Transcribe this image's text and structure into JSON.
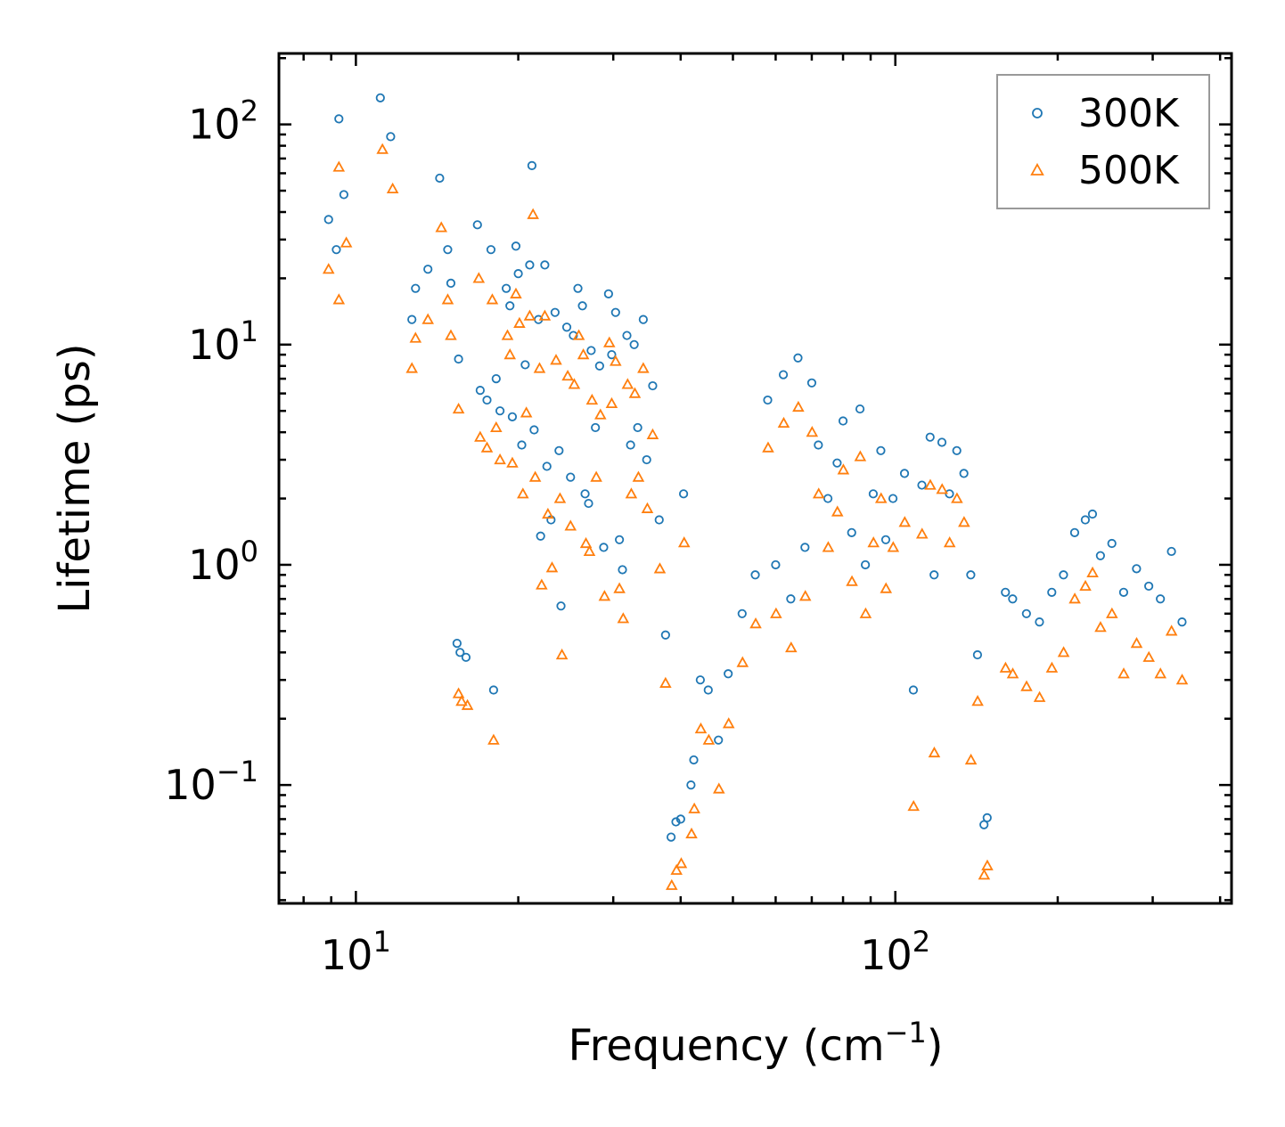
{
  "chart_data": {
    "type": "scatter",
    "title": "",
    "xlabel_main": "Frequency (cm",
    "xlabel_sup": "−1",
    "xlabel_end": ")",
    "ylabel": "Lifetime (ps)",
    "xscale": "log",
    "yscale": "log",
    "xlim": [
      7.2,
      420
    ],
    "ylim": [
      0.029,
      210
    ],
    "x_ticks": [
      {
        "value": 10,
        "base": "10",
        "exp": "1"
      },
      {
        "value": 100,
        "base": "10",
        "exp": "2"
      }
    ],
    "y_ticks": [
      {
        "value": 0.1,
        "base": "10",
        "exp": "−1"
      },
      {
        "value": 1,
        "base": "10",
        "exp": "0"
      },
      {
        "value": 10,
        "base": "10",
        "exp": "1"
      },
      {
        "value": 100,
        "base": "10",
        "exp": "2"
      }
    ],
    "legend_position": "top-right",
    "series": [
      {
        "name": "300K",
        "marker": "circle",
        "color": "#1f77b4",
        "points": [
          [
            8.9,
            37
          ],
          [
            9.2,
            27
          ],
          [
            9.3,
            106
          ],
          [
            9.5,
            48
          ],
          [
            11.1,
            132
          ],
          [
            11.6,
            88
          ],
          [
            12.7,
            13
          ],
          [
            12.9,
            18
          ],
          [
            13.6,
            22
          ],
          [
            14.3,
            57
          ],
          [
            14.8,
            27
          ],
          [
            15.0,
            19
          ],
          [
            15.5,
            8.6
          ],
          [
            15.4,
            0.44
          ],
          [
            15.6,
            0.4
          ],
          [
            16.0,
            0.38
          ],
          [
            16.8,
            35
          ],
          [
            17.0,
            6.2
          ],
          [
            17.5,
            5.6
          ],
          [
            17.8,
            27
          ],
          [
            18.2,
            7.0
          ],
          [
            18.0,
            0.27
          ],
          [
            18.5,
            5.0
          ],
          [
            19.0,
            18
          ],
          [
            19.3,
            15
          ],
          [
            19.5,
            4.7
          ],
          [
            19.8,
            28
          ],
          [
            20.0,
            21
          ],
          [
            20.3,
            3.5
          ],
          [
            20.6,
            8.1
          ],
          [
            21.0,
            23
          ],
          [
            21.2,
            65
          ],
          [
            21.4,
            4.1
          ],
          [
            21.8,
            13
          ],
          [
            22.0,
            1.35
          ],
          [
            22.4,
            23
          ],
          [
            22.6,
            2.8
          ],
          [
            23.0,
            1.6
          ],
          [
            23.4,
            14
          ],
          [
            23.8,
            3.3
          ],
          [
            24.0,
            0.65
          ],
          [
            24.6,
            12
          ],
          [
            25.0,
            2.5
          ],
          [
            25.3,
            11
          ],
          [
            25.8,
            18
          ],
          [
            26.3,
            15
          ],
          [
            26.6,
            2.1
          ],
          [
            27.0,
            1.9
          ],
          [
            27.3,
            9.4
          ],
          [
            27.8,
            4.2
          ],
          [
            28.3,
            8.0
          ],
          [
            28.8,
            1.2
          ],
          [
            29.4,
            17
          ],
          [
            29.8,
            9.0
          ],
          [
            30.3,
            14
          ],
          [
            30.8,
            1.3
          ],
          [
            31.2,
            0.95
          ],
          [
            31.8,
            11
          ],
          [
            32.3,
            3.5
          ],
          [
            32.8,
            10
          ],
          [
            33.3,
            4.2
          ],
          [
            34.1,
            13
          ],
          [
            34.6,
            3.0
          ],
          [
            35.5,
            6.5
          ],
          [
            36.5,
            1.6
          ],
          [
            37.5,
            0.48
          ],
          [
            38.4,
            0.058
          ],
          [
            39.2,
            0.068
          ],
          [
            40.0,
            0.07
          ],
          [
            40.5,
            2.1
          ],
          [
            41.8,
            0.1
          ],
          [
            42.3,
            0.13
          ],
          [
            43.5,
            0.3
          ],
          [
            45.0,
            0.27
          ],
          [
            47.0,
            0.16
          ],
          [
            49.0,
            0.32
          ],
          [
            52.0,
            0.6
          ],
          [
            55.0,
            0.9
          ],
          [
            58.0,
            5.6
          ],
          [
            60.0,
            1.0
          ],
          [
            62.0,
            7.3
          ],
          [
            64.0,
            0.7
          ],
          [
            66.0,
            8.7
          ],
          [
            68.0,
            1.2
          ],
          [
            70.0,
            6.7
          ],
          [
            72.0,
            3.5
          ],
          [
            75.0,
            2.0
          ],
          [
            78.0,
            2.9
          ],
          [
            80.0,
            4.5
          ],
          [
            83.0,
            1.4
          ],
          [
            86.0,
            5.1
          ],
          [
            88.0,
            1.0
          ],
          [
            91.0,
            2.1
          ],
          [
            94.0,
            3.3
          ],
          [
            96.0,
            1.3
          ],
          [
            99.0,
            2.0
          ],
          [
            104.0,
            2.6
          ],
          [
            108.0,
            0.27
          ],
          [
            112.0,
            2.3
          ],
          [
            116.0,
            3.8
          ],
          [
            118.0,
            0.9
          ],
          [
            122.0,
            3.6
          ],
          [
            126.0,
            2.1
          ],
          [
            130.0,
            3.3
          ],
          [
            134.0,
            2.6
          ],
          [
            138.0,
            0.9
          ],
          [
            142.0,
            0.39
          ],
          [
            146.0,
            0.066
          ],
          [
            148.0,
            0.071
          ],
          [
            160.0,
            0.75
          ],
          [
            165.0,
            0.7
          ],
          [
            175.0,
            0.6
          ],
          [
            185.0,
            0.55
          ],
          [
            195.0,
            0.75
          ],
          [
            205.0,
            0.9
          ],
          [
            215.0,
            1.4
          ],
          [
            225.0,
            1.6
          ],
          [
            232.0,
            1.7
          ],
          [
            240.0,
            1.1
          ],
          [
            252.0,
            1.25
          ],
          [
            265.0,
            0.75
          ],
          [
            280.0,
            0.96
          ],
          [
            295.0,
            0.8
          ],
          [
            310.0,
            0.7
          ],
          [
            325.0,
            1.15
          ],
          [
            340.0,
            0.55
          ]
        ]
      },
      {
        "name": "500K",
        "marker": "triangle",
        "color": "#ff7f0e",
        "points": [
          [
            8.9,
            22
          ],
          [
            9.3,
            16
          ],
          [
            9.3,
            64
          ],
          [
            9.6,
            29
          ],
          [
            11.2,
            77
          ],
          [
            11.7,
            51
          ],
          [
            12.7,
            7.8
          ],
          [
            12.9,
            10.7
          ],
          [
            13.6,
            13
          ],
          [
            14.4,
            34
          ],
          [
            14.8,
            16
          ],
          [
            15.0,
            11
          ],
          [
            15.5,
            5.1
          ],
          [
            15.5,
            0.26
          ],
          [
            15.7,
            0.24
          ],
          [
            16.1,
            0.23
          ],
          [
            16.9,
            20
          ],
          [
            17.0,
            3.8
          ],
          [
            17.5,
            3.4
          ],
          [
            17.9,
            16
          ],
          [
            18.2,
            4.2
          ],
          [
            18.0,
            0.16
          ],
          [
            18.5,
            3.0
          ],
          [
            19.1,
            11
          ],
          [
            19.3,
            9.0
          ],
          [
            19.5,
            2.9
          ],
          [
            19.8,
            17
          ],
          [
            20.1,
            12.5
          ],
          [
            20.4,
            2.1
          ],
          [
            20.7,
            4.9
          ],
          [
            21.0,
            13.5
          ],
          [
            21.3,
            39
          ],
          [
            21.5,
            2.5
          ],
          [
            21.9,
            7.8
          ],
          [
            22.1,
            0.81
          ],
          [
            22.4,
            13.5
          ],
          [
            22.7,
            1.7
          ],
          [
            23.1,
            0.97
          ],
          [
            23.5,
            8.5
          ],
          [
            23.9,
            2.0
          ],
          [
            24.1,
            0.39
          ],
          [
            24.7,
            7.2
          ],
          [
            25.0,
            1.5
          ],
          [
            25.4,
            6.6
          ],
          [
            25.9,
            11
          ],
          [
            26.4,
            9.0
          ],
          [
            26.7,
            1.25
          ],
          [
            27.1,
            1.15
          ],
          [
            27.4,
            5.6
          ],
          [
            27.9,
            2.5
          ],
          [
            28.4,
            4.8
          ],
          [
            28.9,
            0.72
          ],
          [
            29.5,
            10.2
          ],
          [
            29.8,
            5.4
          ],
          [
            30.3,
            8.4
          ],
          [
            30.8,
            0.78
          ],
          [
            31.3,
            0.57
          ],
          [
            31.9,
            6.6
          ],
          [
            32.4,
            2.1
          ],
          [
            32.9,
            6.0
          ],
          [
            33.4,
            2.5
          ],
          [
            34.1,
            7.8
          ],
          [
            34.7,
            1.8
          ],
          [
            35.5,
            3.9
          ],
          [
            36.6,
            0.96
          ],
          [
            37.5,
            0.29
          ],
          [
            38.5,
            0.035
          ],
          [
            39.3,
            0.041
          ],
          [
            40.1,
            0.044
          ],
          [
            40.6,
            1.26
          ],
          [
            41.9,
            0.06
          ],
          [
            42.4,
            0.078
          ],
          [
            43.6,
            0.18
          ],
          [
            45.1,
            0.16
          ],
          [
            47.1,
            0.096
          ],
          [
            49.1,
            0.19
          ],
          [
            52.1,
            0.36
          ],
          [
            55.1,
            0.54
          ],
          [
            58.1,
            3.4
          ],
          [
            60.1,
            0.6
          ],
          [
            62.1,
            4.4
          ],
          [
            64.1,
            0.42
          ],
          [
            66.1,
            5.2
          ],
          [
            68.1,
            0.72
          ],
          [
            70.1,
            4.0
          ],
          [
            72.1,
            2.1
          ],
          [
            75.1,
            1.2
          ],
          [
            78.1,
            1.74
          ],
          [
            80.1,
            2.7
          ],
          [
            83.1,
            0.84
          ],
          [
            86.1,
            3.1
          ],
          [
            88.1,
            0.6
          ],
          [
            91.1,
            1.26
          ],
          [
            94.1,
            2.0
          ],
          [
            96.1,
            0.78
          ],
          [
            99.1,
            1.2
          ],
          [
            104.1,
            1.56
          ],
          [
            108.1,
            0.08
          ],
          [
            112.1,
            1.38
          ],
          [
            116.1,
            2.3
          ],
          [
            118.1,
            0.14
          ],
          [
            122.1,
            2.2
          ],
          [
            126.1,
            1.26
          ],
          [
            130.1,
            2.0
          ],
          [
            134.1,
            1.56
          ],
          [
            138.1,
            0.13
          ],
          [
            142.1,
            0.24
          ],
          [
            146.1,
            0.039
          ],
          [
            148.1,
            0.043
          ],
          [
            160.1,
            0.34
          ],
          [
            165.1,
            0.32
          ],
          [
            175.1,
            0.28
          ],
          [
            185.1,
            0.25
          ],
          [
            195.1,
            0.34
          ],
          [
            205.1,
            0.4
          ],
          [
            215.1,
            0.7
          ],
          [
            225.1,
            0.8
          ],
          [
            232.1,
            0.92
          ],
          [
            240.1,
            0.52
          ],
          [
            252.1,
            0.6
          ],
          [
            265.1,
            0.32
          ],
          [
            280.1,
            0.44
          ],
          [
            295.1,
            0.38
          ],
          [
            310.1,
            0.32
          ],
          [
            325.1,
            0.5
          ],
          [
            340.1,
            0.3
          ]
        ]
      }
    ]
  }
}
